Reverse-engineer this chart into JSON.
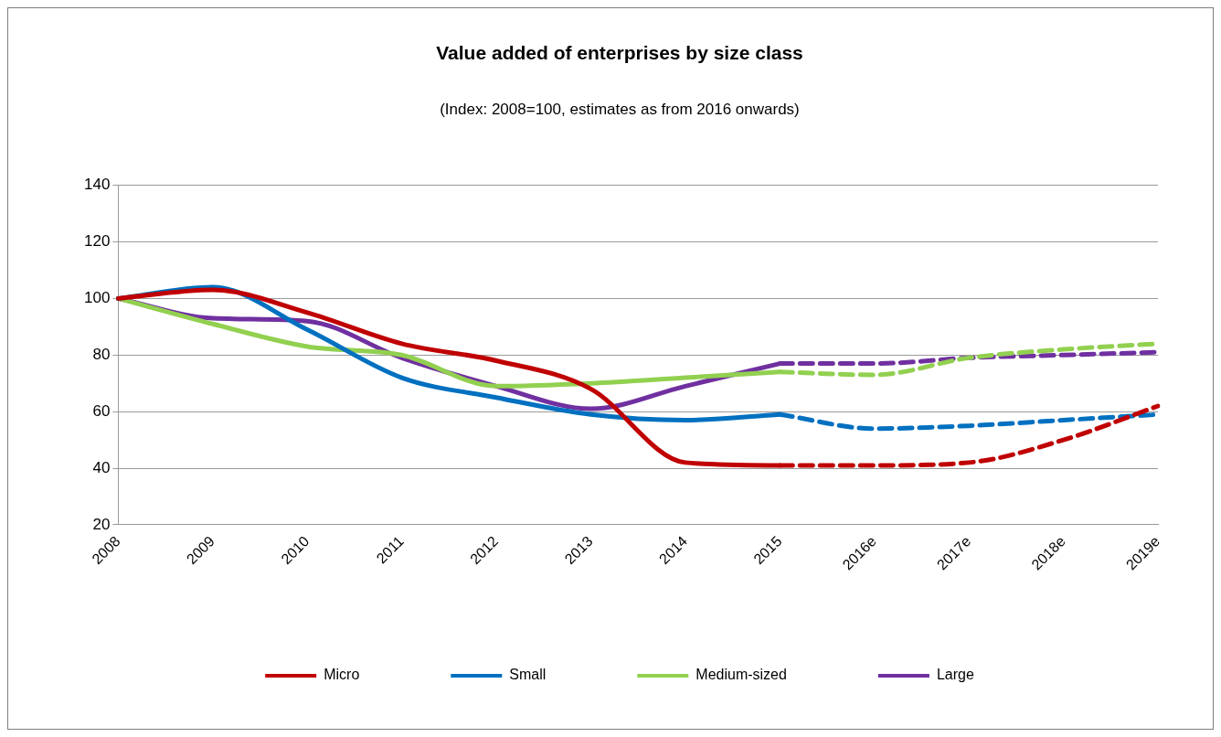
{
  "chart_data": {
    "type": "line",
    "title": "Value added of enterprises by size class",
    "subtitle": "(Index: 2008=100, estimates as from 2016 onwards)",
    "categories": [
      "2008",
      "2009",
      "2010",
      "2011",
      "2012",
      "2013",
      "2014",
      "2015",
      "2016e",
      "2017e",
      "2018e",
      "2019e"
    ],
    "series": [
      {
        "name": "Micro",
        "color": "#c00000",
        "line_style": "solid",
        "values": [
          100,
          103,
          95,
          84,
          78,
          68,
          42,
          41,
          null,
          null,
          null,
          null
        ]
      },
      {
        "name": "Small",
        "color": "#0070c0",
        "line_style": "solid",
        "values": [
          100,
          104,
          89,
          72,
          65,
          59,
          57,
          59,
          null,
          null,
          null,
          null
        ]
      },
      {
        "name": "Medium-sized",
        "color": "#92d050",
        "line_style": "solid",
        "values": [
          100,
          91,
          83,
          80,
          69,
          70,
          72,
          74,
          null,
          null,
          null,
          null
        ]
      },
      {
        "name": "Large",
        "color": "#7030a0",
        "line_style": "solid",
        "values": [
          100,
          93,
          92,
          79,
          69,
          61,
          69,
          77,
          null,
          null,
          null,
          null
        ]
      },
      {
        "color": "#c00000",
        "line_style": "dashed",
        "values": [
          null,
          null,
          null,
          null,
          null,
          null,
          null,
          41,
          41,
          42,
          50,
          62
        ]
      },
      {
        "color": "#0070c0",
        "line_style": "dashed",
        "values": [
          null,
          null,
          null,
          null,
          null,
          null,
          null,
          59,
          54,
          55,
          57,
          59
        ]
      },
      {
        "color": "#92d050",
        "line_style": "dashed",
        "values": [
          null,
          null,
          null,
          null,
          null,
          null,
          null,
          74,
          73,
          79,
          82,
          84
        ]
      },
      {
        "color": "#7030a0",
        "line_style": "dashed",
        "values": [
          null,
          null,
          null,
          null,
          null,
          null,
          null,
          77,
          77,
          79,
          80,
          81
        ]
      }
    ],
    "ylim": [
      20,
      140
    ],
    "yticks": [
      20,
      40,
      60,
      80,
      100,
      120,
      140
    ],
    "grid": "y",
    "legend": "bottom",
    "marker": "none"
  }
}
